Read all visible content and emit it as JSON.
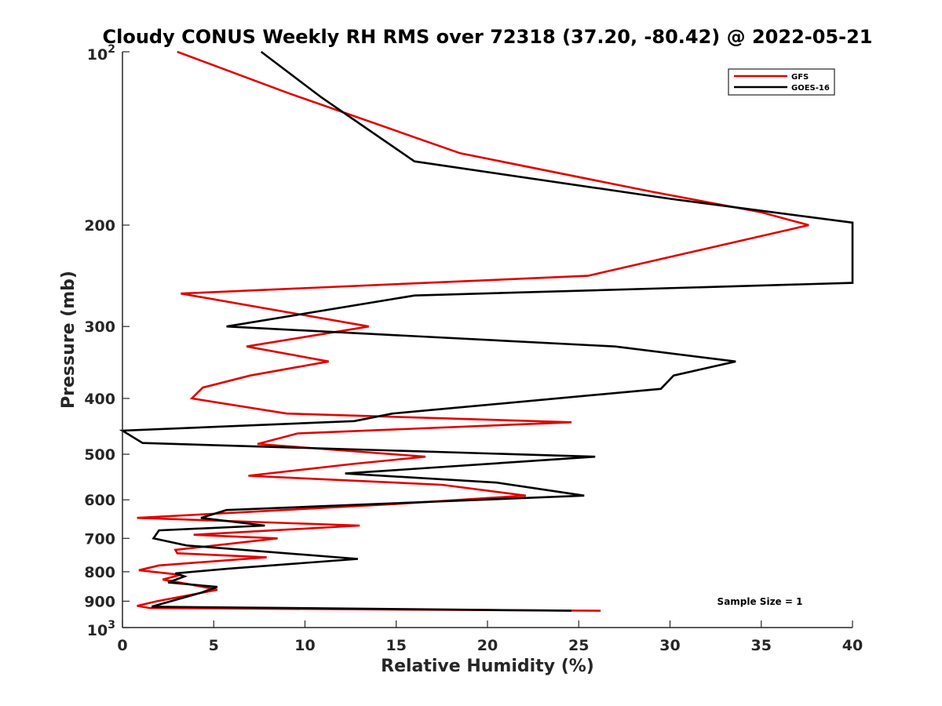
{
  "chart_data": {
    "type": "line",
    "title": "Cloudy CONUS Weekly RH RMS over 72318 (37.20, -80.42) @ 2022-05-21",
    "xlabel": "Relative Humidity (%)",
    "ylabel": "Pressure (mb)",
    "xlim": [
      0,
      40
    ],
    "ylim": [
      100,
      1000
    ],
    "yscale": "log",
    "y_reversed": true,
    "x_ticks": [
      0,
      5,
      10,
      15,
      20,
      25,
      30,
      35,
      40
    ],
    "x_tick_labels": [
      "0",
      "5",
      "10",
      "15",
      "20",
      "25",
      "30",
      "35",
      "40"
    ],
    "y_ticks": [
      200,
      300,
      400,
      500,
      600,
      700,
      800,
      900
    ],
    "y_tick_labels": [
      "200",
      "300",
      "400",
      "500",
      "600",
      "700",
      "800",
      "900"
    ],
    "y_decade_labels": [
      {
        "value": 100,
        "base": "10",
        "exp": "2"
      },
      {
        "value": 1000,
        "base": "10",
        "exp": "3"
      }
    ],
    "legend": {
      "position": "top-right",
      "entries": [
        "GFS",
        "GOES-16"
      ]
    },
    "annotation": "Sample Size = 1",
    "series": [
      {
        "name": "GFS",
        "color": "#e00000",
        "points": [
          [
            3.0,
            100
          ],
          [
            9.1,
            118
          ],
          [
            18.5,
            150
          ],
          [
            29.0,
            175
          ],
          [
            35.0,
            190
          ],
          [
            37.6,
            200
          ],
          [
            25.5,
            245
          ],
          [
            3.2,
            263
          ],
          [
            13.5,
            300
          ],
          [
            6.8,
            325
          ],
          [
            11.3,
            345
          ],
          [
            7.0,
            365
          ],
          [
            4.4,
            383
          ],
          [
            3.8,
            400
          ],
          [
            9.0,
            425
          ],
          [
            24.6,
            440
          ],
          [
            9.6,
            460
          ],
          [
            7.4,
            480
          ],
          [
            16.6,
            505
          ],
          [
            12.6,
            520
          ],
          [
            6.9,
            545
          ],
          [
            17.5,
            565
          ],
          [
            22.1,
            590
          ],
          [
            15.0,
            610
          ],
          [
            0.8,
            645
          ],
          [
            13.0,
            665
          ],
          [
            3.9,
            690
          ],
          [
            8.5,
            700
          ],
          [
            2.9,
            733
          ],
          [
            3.0,
            743
          ],
          [
            7.9,
            755
          ],
          [
            2.0,
            780
          ],
          [
            0.9,
            795
          ],
          [
            3.2,
            810
          ],
          [
            2.2,
            825
          ],
          [
            4.0,
            845
          ],
          [
            5.2,
            860
          ],
          [
            1.9,
            900
          ],
          [
            0.8,
            917
          ],
          [
            1.5,
            925
          ],
          [
            26.2,
            935
          ]
        ]
      },
      {
        "name": "GOES-16",
        "color": "#000000",
        "points": [
          [
            7.6,
            100
          ],
          [
            10.9,
            120
          ],
          [
            16.0,
            155
          ],
          [
            30.0,
            180
          ],
          [
            40.0,
            198
          ],
          [
            40.0,
            252
          ],
          [
            16.0,
            265
          ],
          [
            5.7,
            300
          ],
          [
            27.0,
            325
          ],
          [
            33.6,
            345
          ],
          [
            30.2,
            365
          ],
          [
            29.5,
            385
          ],
          [
            14.8,
            425
          ],
          [
            12.7,
            438
          ],
          [
            0.0,
            455
          ],
          [
            1.1,
            478
          ],
          [
            25.9,
            505
          ],
          [
            12.2,
            540
          ],
          [
            20.5,
            560
          ],
          [
            25.3,
            590
          ],
          [
            5.7,
            625
          ],
          [
            4.3,
            645
          ],
          [
            7.8,
            665
          ],
          [
            2.0,
            678
          ],
          [
            1.7,
            700
          ],
          [
            3.5,
            720
          ],
          [
            12.9,
            760
          ],
          [
            5.8,
            790
          ],
          [
            2.9,
            805
          ],
          [
            3.4,
            815
          ],
          [
            2.5,
            835
          ],
          [
            5.2,
            850
          ],
          [
            4.3,
            870
          ],
          [
            1.6,
            920
          ],
          [
            24.6,
            935
          ]
        ]
      }
    ]
  }
}
